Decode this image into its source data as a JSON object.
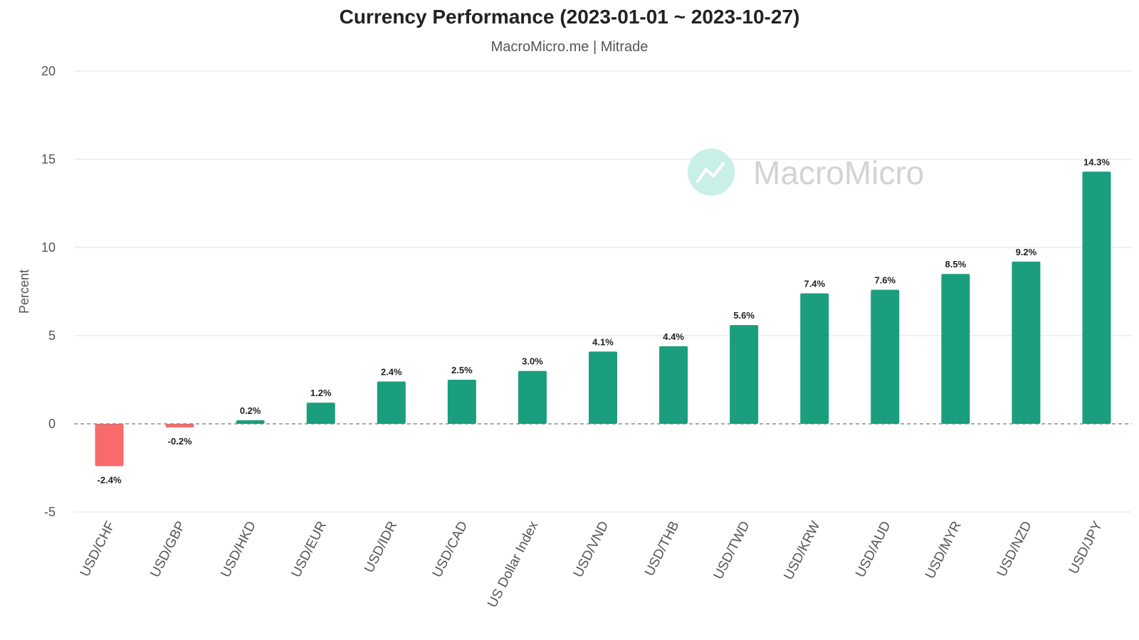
{
  "title": "Currency Performance (2023-01-01 ~ 2023-10-27)",
  "subtitle": "MacroMicro.me | Mitrade",
  "watermark": "MacroMicro",
  "colors": {
    "positive": "#1a9e7d",
    "negative": "#f96a6a",
    "grid": "#e0e0e0",
    "zero_line": "#777777",
    "watermark_circle": "#c8f0e6"
  },
  "chart_data": {
    "type": "bar",
    "title": "Currency Performance (2023-01-01 ~ 2023-10-27)",
    "subtitle": "MacroMicro.me | Mitrade",
    "ylabel": "Percent",
    "xlabel": "",
    "ylim": [
      -5,
      20
    ],
    "yticks": [
      -5,
      0,
      5,
      10,
      15,
      20
    ],
    "grid": true,
    "categories": [
      "USD/CHF",
      "USD/GBP",
      "USD/HKD",
      "USD/EUR",
      "USD/IDR",
      "USD/CAD",
      "US Dollar Index",
      "USD/VND",
      "USD/THB",
      "USD/TWD",
      "USD/KRW",
      "USD/AUD",
      "USD/MYR",
      "USD/NZD",
      "USD/JPY"
    ],
    "values": [
      -2.4,
      -0.2,
      0.2,
      1.2,
      2.4,
      2.5,
      3.0,
      4.1,
      4.4,
      5.6,
      7.4,
      7.6,
      8.5,
      9.2,
      14.3
    ],
    "data_labels": [
      "-2.4%",
      "-0.2%",
      "0.2%",
      "1.2%",
      "2.4%",
      "2.5%",
      "3.0%",
      "4.1%",
      "4.4%",
      "5.6%",
      "7.4%",
      "7.6%",
      "8.5%",
      "9.2%",
      "14.3%"
    ]
  }
}
